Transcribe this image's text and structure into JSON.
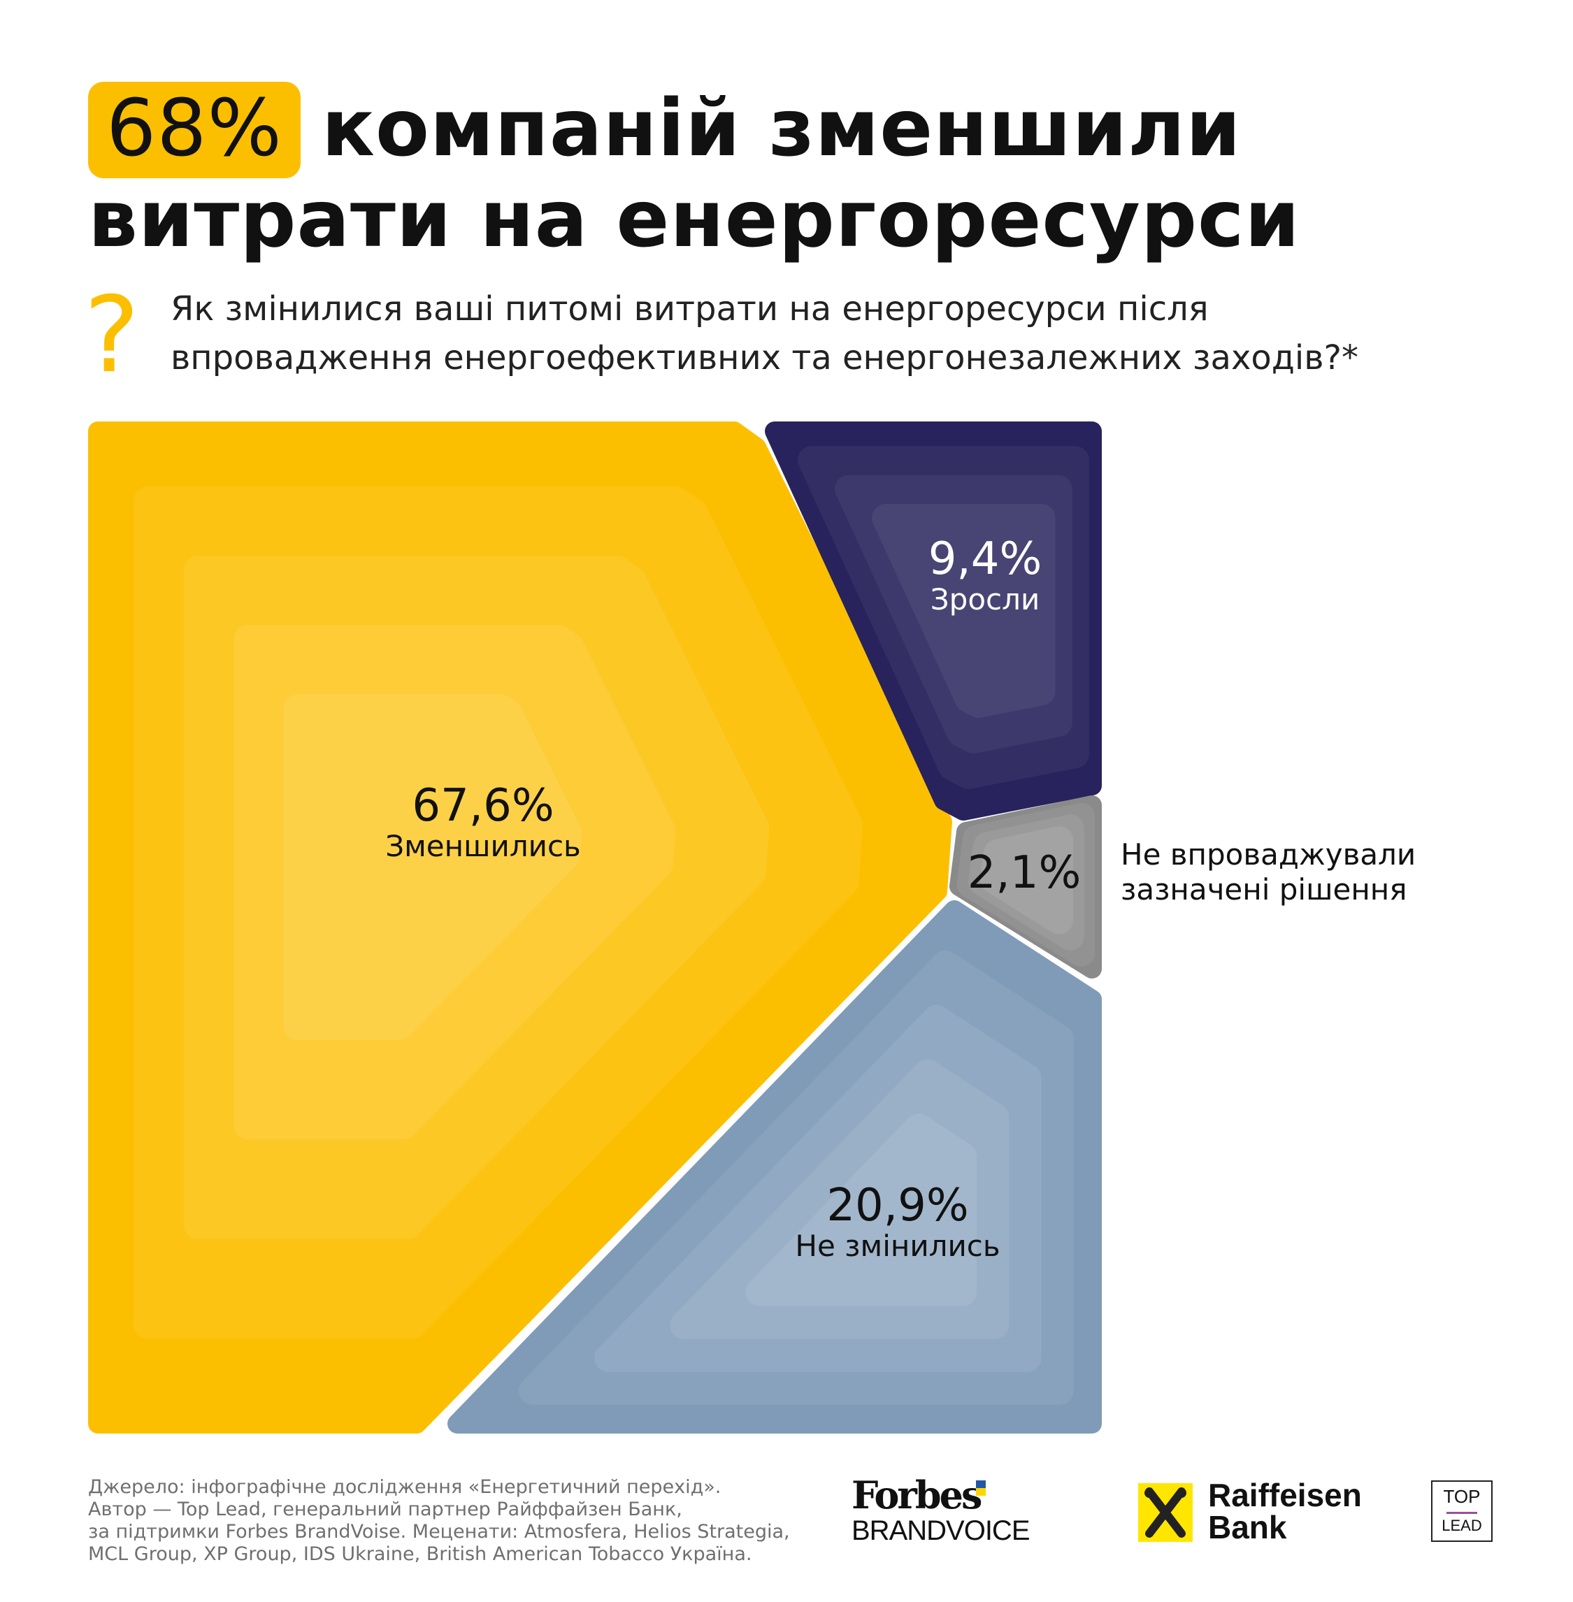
{
  "header": {
    "highlight": "68%",
    "title_line1": "компаній зменшили",
    "title_line2": "витрати на енергоресурси",
    "question_icon": "question-mark-icon",
    "question_line1": "Як змінилися ваші питомі витрати на енергоресурси після",
    "question_line2": "впровадження енергоефективних та енергонезалежних заходів?*"
  },
  "chart_data": {
    "type": "voronoi-treemap",
    "title": "Як змінилися ваші питомі витрати на енергоресурси після впровадження енергоефективних та енергонезалежних заходів?*",
    "categories": [
      "Зменшились",
      "Зросли",
      "Не впроваджували зазначені рішення",
      "Не змінились"
    ],
    "values": [
      67.6,
      9.4,
      2.1,
      20.9
    ],
    "labels": [
      "67,6%",
      "9,4%",
      "2,1%",
      "20,9%"
    ],
    "colors": [
      "#fcbf00",
      "#28235c",
      "#8a8a8a",
      "#7f9bb8"
    ],
    "side_label_line1": "Не впроваджували",
    "side_label_line2": "зазначені рішення",
    "sub_labels": [
      "Зменшились",
      "Зросли",
      "",
      "Не змінились"
    ]
  },
  "footer": {
    "lines": [
      "Джерело: інфографічне дослідження «Енергетичний перехід».",
      "Автор — Top Lead, генеральний партнер Райффайзен Банк,",
      "за підтримки Forbes BrandVoise. Меценати: Atmosfera, Helios Strategia,",
      "MCL Group, XP Group, IDS Ukraine, British American Tobacco Україна."
    ],
    "logos": {
      "forbes_top": "Forbes",
      "forbes_bottom": "BRANDVOICE",
      "raiffeisen_1": "Raiffeisen",
      "raiffeisen_2": "Bank",
      "toplead_1": "TOP",
      "toplead_2": "LEAD"
    }
  }
}
